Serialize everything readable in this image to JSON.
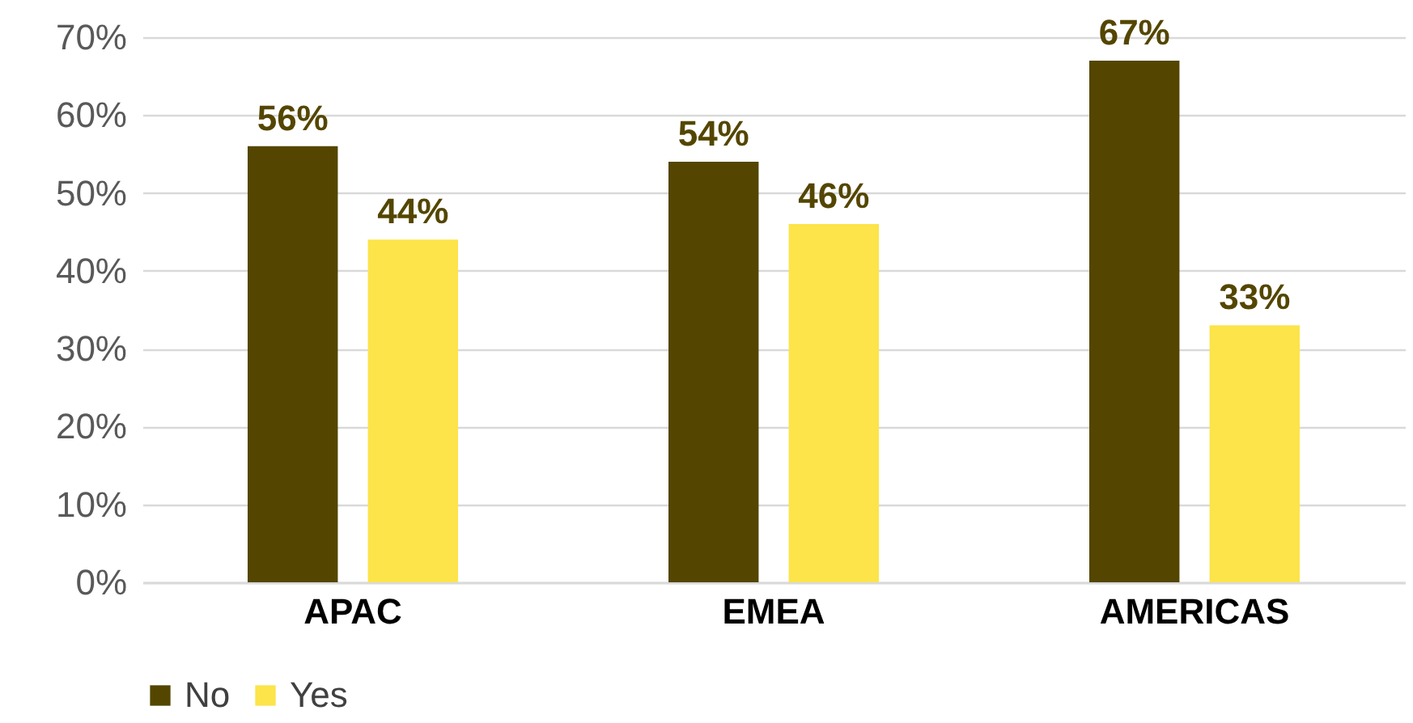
{
  "chart_data": {
    "type": "bar",
    "categories": [
      "APAC",
      "EMEA",
      "AMERICAS"
    ],
    "series": [
      {
        "name": "No",
        "color": "#544600",
        "values": [
          56,
          54,
          67
        ],
        "value_labels": [
          "56%",
          "54%",
          "67%"
        ]
      },
      {
        "name": "Yes",
        "color": "#fce44a",
        "values": [
          44,
          46,
          33
        ],
        "value_labels": [
          "44%",
          "46%",
          "33%"
        ]
      }
    ],
    "ylim": [
      0,
      70
    ],
    "yticks": [
      {
        "value": 0,
        "label": "0%"
      },
      {
        "value": 10,
        "label": "10%"
      },
      {
        "value": 20,
        "label": "20%"
      },
      {
        "value": 30,
        "label": "30%"
      },
      {
        "value": 40,
        "label": "40%"
      },
      {
        "value": 50,
        "label": "50%"
      },
      {
        "value": 60,
        "label": "60%"
      },
      {
        "value": 70,
        "label": "70%"
      }
    ],
    "grid": "y",
    "legend": "bottom"
  }
}
